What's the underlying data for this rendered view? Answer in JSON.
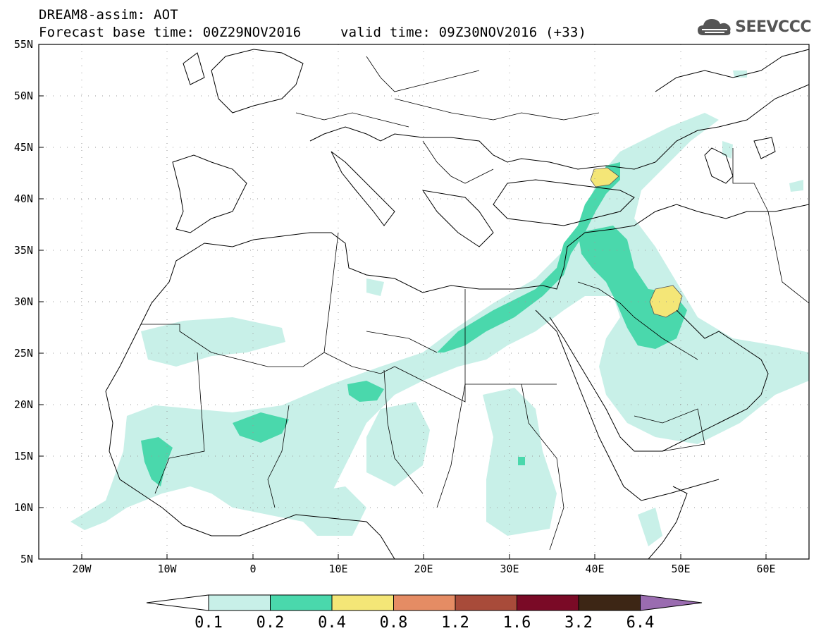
{
  "header": {
    "line1": "DREAM8-assim: AOT",
    "line2": "Forecast base time: 00Z29NOV2016",
    "line3": "valid time: 09Z30NOV2016 (+33)"
  },
  "logo": {
    "text": "SEEVCCC",
    "icon": "cloud-icon"
  },
  "map": {
    "lat_labels": [
      "55N",
      "50N",
      "45N",
      "40N",
      "35N",
      "30N",
      "25N",
      "20N",
      "15N",
      "10N",
      "5N"
    ],
    "lon_labels": [
      "20W",
      "10W",
      "0",
      "10E",
      "20E",
      "30E",
      "40E",
      "50E",
      "60E"
    ],
    "lon_range": [
      -25,
      65
    ],
    "lat_range": [
      5,
      55
    ],
    "grid": "dotted"
  },
  "colorbar": {
    "labels": [
      "0.1",
      "0.2",
      "0.4",
      "0.8",
      "1.2",
      "1.6",
      "3.2",
      "6.4"
    ],
    "colors": [
      "#ffffff",
      "#c8f0e8",
      "#4ad8ac",
      "#f4e677",
      "#e58c64",
      "#a84b3a",
      "#7a0a26",
      "#3d2615",
      "#9a6cb0"
    ]
  },
  "colors": {
    "aot_low": "#c8f0e8",
    "aot_mid": "#4ad8ac",
    "aot_high": "#f4e677"
  }
}
